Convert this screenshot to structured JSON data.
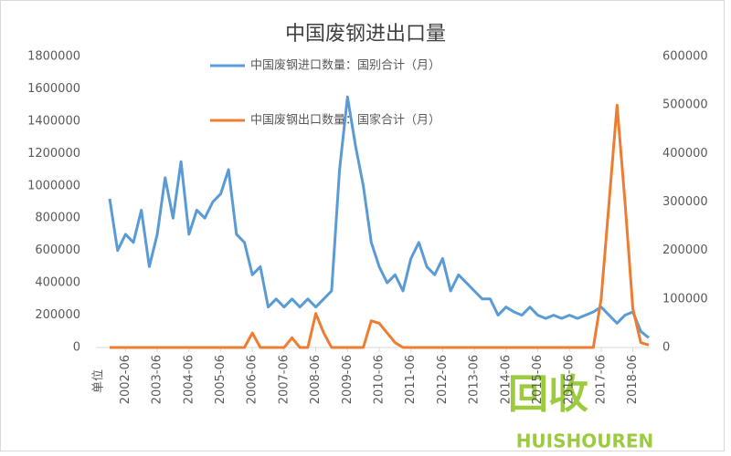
{
  "chart_data": {
    "type": "line",
    "title": "中国废钢进出口量",
    "y_label": "单位",
    "categories": [
      null,
      null,
      "2002-06",
      null,
      null,
      null,
      "2003-06",
      null,
      null,
      null,
      "2004-06",
      null,
      null,
      null,
      "2005-06",
      null,
      null,
      null,
      "2006-06",
      null,
      null,
      null,
      "2007-06",
      null,
      null,
      null,
      "2008-06",
      null,
      null,
      null,
      "2009-06",
      null,
      null,
      null,
      "2010-06",
      null,
      null,
      null,
      "2011-06",
      null,
      null,
      null,
      "2012-06",
      null,
      null,
      null,
      "2013-06",
      null,
      null,
      null,
      "2014-06",
      null,
      null,
      null,
      "2015-06",
      null,
      null,
      null,
      "2016-06",
      null,
      null,
      null,
      "2017-06",
      null,
      null,
      null,
      "2018-06",
      null,
      null
    ],
    "series": [
      {
        "name": "中国废钢进口数量：国别合计（月）",
        "color": "#5b9bd5",
        "axis": "y",
        "values": [
          920000,
          600000,
          700000,
          650000,
          850000,
          500000,
          700000,
          1050000,
          800000,
          1150000,
          700000,
          850000,
          800000,
          900000,
          950000,
          1100000,
          700000,
          650000,
          450000,
          500000,
          250000,
          300000,
          250000,
          300000,
          250000,
          300000,
          250000,
          300000,
          350000,
          1100000,
          1550000,
          1250000,
          1000000,
          650000,
          500000,
          400000,
          450000,
          350000,
          550000,
          650000,
          500000,
          450000,
          550000,
          350000,
          450000,
          400000,
          350000,
          300000,
          300000,
          200000,
          250000,
          220000,
          200000,
          250000,
          200000,
          180000,
          200000,
          180000,
          200000,
          180000,
          200000,
          220000,
          250000,
          200000,
          150000,
          200000,
          220000,
          100000,
          60000
        ]
      },
      {
        "name": "中国废钢出口数量：国家合计（月）",
        "color": "#ed7d31",
        "axis": "y2",
        "values": [
          0,
          0,
          0,
          0,
          0,
          0,
          0,
          0,
          0,
          0,
          0,
          0,
          0,
          0,
          0,
          0,
          0,
          0,
          30000,
          0,
          0,
          0,
          0,
          20000,
          0,
          0,
          70000,
          30000,
          0,
          0,
          0,
          0,
          0,
          55000,
          50000,
          30000,
          10000,
          0,
          0,
          0,
          0,
          0,
          0,
          0,
          0,
          0,
          0,
          0,
          0,
          0,
          0,
          0,
          0,
          0,
          0,
          0,
          0,
          0,
          0,
          0,
          0,
          0,
          100000,
          300000,
          500000,
          300000,
          80000,
          10000,
          5000
        ]
      }
    ],
    "ylim": [
      0,
      1800000
    ],
    "yticks": [
      0,
      200000,
      400000,
      600000,
      800000,
      1000000,
      1200000,
      1400000,
      1600000,
      1800000
    ],
    "y2lim": [
      0,
      600000
    ],
    "y2ticks": [
      0,
      100000,
      200000,
      300000,
      400000,
      500000,
      600000
    ],
    "watermark": [
      "回收",
      "HUISHOUREN"
    ]
  }
}
